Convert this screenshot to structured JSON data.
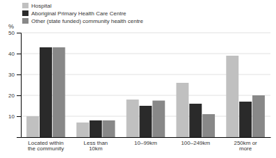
{
  "chart_data": {
    "type": "bar",
    "ylabel": "%",
    "categories": [
      "Located within\nthe community",
      "Less than\n10km",
      "10–99km",
      "100–249km",
      "250km or\nmore"
    ],
    "series": [
      {
        "name": "Hospital",
        "color": "#c0c0c0",
        "values": [
          10,
          7,
          18,
          26,
          39
        ]
      },
      {
        "name": "Aboriginal Primary Health Care Centre",
        "color": "#2a2a2a",
        "values": [
          43,
          8,
          15,
          16,
          17
        ]
      },
      {
        "name": "Other (state funded) community health centre",
        "color": "#888888",
        "values": [
          43,
          8,
          17.5,
          11,
          20
        ]
      }
    ],
    "ylim": [
      0,
      50
    ],
    "yticks": [
      10,
      20,
      30,
      40,
      50
    ],
    "grid": true,
    "legend": "upper left"
  }
}
